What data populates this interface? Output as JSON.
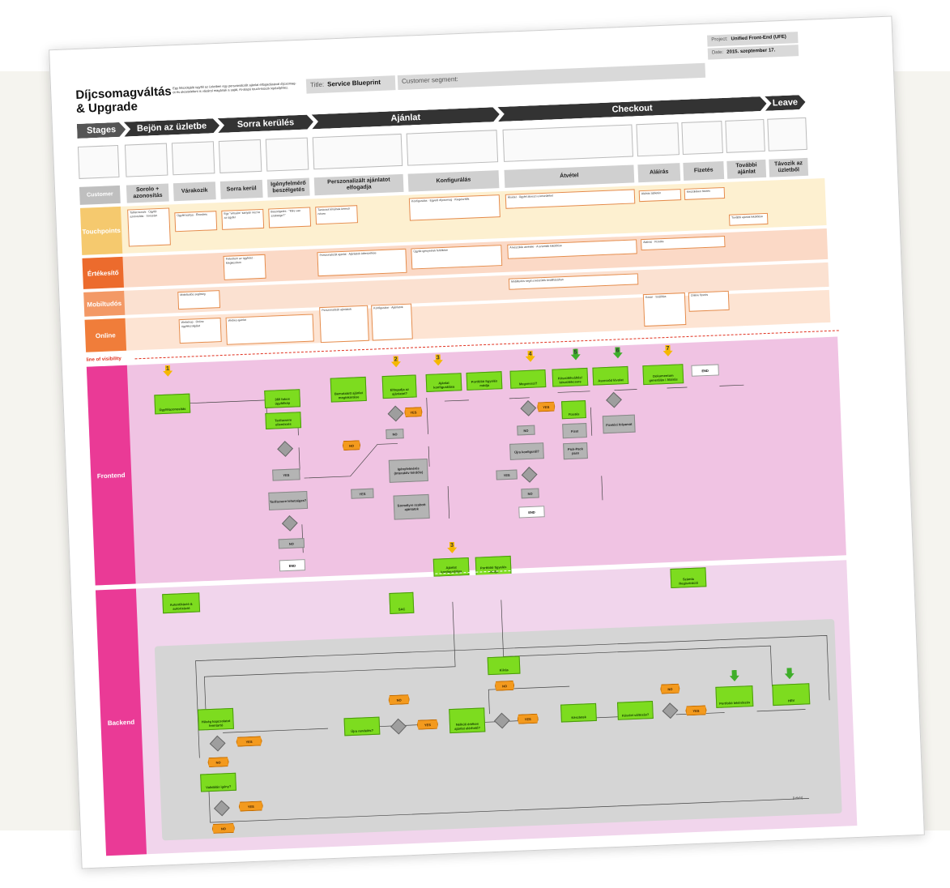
{
  "header": {
    "title_line1": "Díjcsomagváltás",
    "title_line2": "& Upgrade",
    "description_line1": "Egy felszolgáló ügyfél az üzletben egy perszonalizált ajánlat elfogadásával díjcsomag-",
    "description_line2": "ot és okostelefont is vásárol magának a saját, AI-alapú touch-kioszk kijelzőjéhez.",
    "title_label": "Title:",
    "title_value": "Service Blueprint",
    "segment_label": "Customer segment:",
    "project_label": "Project:",
    "project_value": "Unified Front-End (UFE)",
    "date_label": "Date:",
    "date_value": "2015. szeptember 17."
  },
  "stages": {
    "label": "Stages",
    "items": [
      "Bejön az üzletbe",
      "Sorra kerülés",
      "Ajánlat",
      "Checkout",
      "Leave"
    ]
  },
  "steps": {
    "label": "Customer",
    "items": [
      "Sorolo + azonosítás",
      "Várakozik",
      "Sorra kerül",
      "Igényfelmérő beszélgetés",
      "Perszonalizált ajánlatot elfogadja",
      "Konfigurálás",
      "Átvétel",
      "Aláírás",
      "Fizetés",
      "További ajánlat",
      "Távozik az üzletből"
    ]
  },
  "lanes": {
    "touchpoints": "Touchpoints",
    "ertekesito": "Értékesítő",
    "mobiltudos": "Mobiltudós",
    "online": "Online",
    "line_of_visibility": "line of visibility",
    "frontend": "Frontend",
    "backend": "Backend"
  },
  "cards": {
    "c1": "Tablet kioszk · Ügyfél azonosítás · Sorszám",
    "c2": "Ügyfél kártya · Értesítés",
    "c3": "Egy \"virtuális\" kártyán nézi ki az ügyfél",
    "c4": "Beszélgetés · \"Mire van szüksége?\"",
    "c5": "Tanácsot kínálnak kereső néven",
    "c6": "Konfigurálás · Egyedi díjcsomag · Kiegészítők",
    "c7": "Átvétel · Ügyfél átveszi a készüléket",
    "c8": "Aláírás tabletén",
    "c9": "Készüléken fizetés",
    "c10": "További ajánlat kiküldése",
    "e1": "Felvettem az ügyfelet · Megkezdem",
    "e2": "Perszonalizált ajánlat · Ajánlatok átbeszélése",
    "e3": "Ügyfél igényeinek feltöltése",
    "e4": "A készülék átvétele · A számlák kiküldése",
    "e5": "Aláírás · Fizetés",
    "m1": "Mobiltudós segítség",
    "m2": "Mobiltudós segít a készülék beállításában",
    "o1": "Webshop · Online ügyfélszolgálat",
    "o2": "Webes ajánlat",
    "o3": "Perszonalizált ajánlatok",
    "o4": "Konfigurátor · Ajánlatok",
    "o5": "Kosár · Szállítás",
    "o6": "Online fizetés"
  },
  "frontend_nodes": {
    "n1": "Ügyfélazonosítás",
    "n2": "360 fokos ügyfélkép",
    "n3": "Tarifacsere ellenőrzés",
    "n4": "Bemutatott ajánlat megtekintése",
    "n5": "Elfogadja az ajánlatot?",
    "n6": "Ajánlat konfigurálása",
    "n7": "Portfólió figyelés módja",
    "n8": "Megvesszi?",
    "n9": "Készülékváltás/ készülékcsere",
    "n10": "Aszerződ lévolat",
    "n11": "Dokumentum generálás / Aláírás",
    "n12": "Tarifacsere lehetséges?",
    "n13": "Igényfelmérés (Interaktív kérdőív)",
    "n14": "Személyre szabott ajánlatok",
    "n15": "Újra konfigurál?",
    "n16": "Fizetés",
    "n17": "Fizet",
    "n18": "Fizetési folyamat",
    "n19": "Pick-Pack pass",
    "n20": "Ajánlat konfigurálása",
    "n21": "Portfólió figyelés módja"
  },
  "backend_nodes": {
    "b1": "Autentikáció & autorizáció",
    "b2": "SAC",
    "b3": "Számla Regisztráció",
    "b4": "Hűség kapcsolatot fenntartó",
    "b5": "Újra rendelés?",
    "b6": "Kiírás",
    "b7": "Nélküli értékes ajánlat elérhető?",
    "b8": "Készletek",
    "b9": "Készlet változás?",
    "b10": "Portfolió lekérdezés",
    "b11": "HRV",
    "b12": "Validálás igény?",
    "b13": "[Lekér]"
  },
  "labels": {
    "yes": "YES",
    "no": "NO",
    "end": "END"
  },
  "markers": [
    "1",
    "2",
    "3",
    "4",
    "5",
    "6",
    "7",
    "3"
  ],
  "colors": {
    "stage_dark": "#333333",
    "touchpoint": "#f5c96e",
    "ertekesito": "#ec6b2d",
    "mobiltudos": "#f39966",
    "online": "#f07d3a",
    "frontend": "#ea3a96",
    "backend": "#ea3a96",
    "frontend_bg": "#f0c3e3",
    "backend_bg": "#f1d5ec",
    "backend_box": "#d5d5d5",
    "green_node": "#7ddc1f",
    "orange_node": "#f39a1e",
    "marker_yellow": "#f5b800",
    "marker_green": "#3fae2a"
  }
}
